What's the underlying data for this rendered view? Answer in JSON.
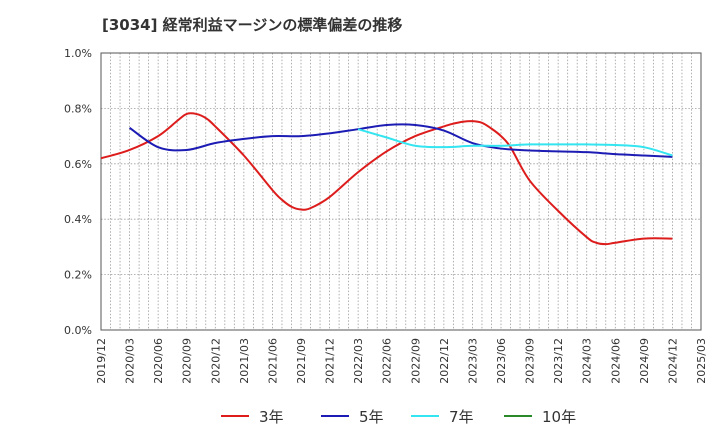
{
  "chart_data": {
    "type": "line",
    "title": "[3034]  経常利益マージンの標準偏差の推移",
    "xlabel": "",
    "ylabel": "",
    "x_ticks": [
      "2019/12",
      "2020/03",
      "2020/06",
      "2020/09",
      "2020/12",
      "2021/03",
      "2021/06",
      "2021/09",
      "2021/12",
      "2022/03",
      "2022/06",
      "2022/09",
      "2022/12",
      "2023/03",
      "2023/06",
      "2023/09",
      "2023/12",
      "2024/03",
      "2024/06",
      "2024/09",
      "2024/12",
      "2025/03"
    ],
    "y_ticks": [
      "0.0%",
      "0.2%",
      "0.4%",
      "0.6%",
      "0.8%",
      "1.0%"
    ],
    "ylim": [
      0,
      1.0
    ],
    "grid": true,
    "legend_position": "bottom",
    "series": [
      {
        "name": "3年",
        "color": "#dd1c1c",
        "x": [
          "2019/12",
          "2020/03",
          "2020/06",
          "2020/08",
          "2020/09",
          "2020/10",
          "2020/11",
          "2020/12",
          "2021/03",
          "2021/06",
          "2021/07",
          "2021/08",
          "2021/09",
          "2021/10",
          "2021/12",
          "2022/03",
          "2022/06",
          "2022/09",
          "2022/12",
          "2023/01",
          "2023/02",
          "2023/03",
          "2023/04",
          "2023/05",
          "2023/06",
          "2023/07",
          "2023/09",
          "2023/12",
          "2024/03",
          "2024/04",
          "2024/05",
          "2024/06",
          "2024/09",
          "2024/12"
        ],
        "values": [
          0.62,
          0.65,
          0.7,
          0.755,
          0.78,
          0.78,
          0.765,
          0.735,
          0.63,
          0.505,
          0.47,
          0.445,
          0.435,
          0.44,
          0.48,
          0.57,
          0.645,
          0.7,
          0.735,
          0.745,
          0.752,
          0.754,
          0.748,
          0.727,
          0.7,
          0.66,
          0.54,
          0.43,
          0.335,
          0.315,
          0.31,
          0.315,
          0.33,
          0.33
        ]
      },
      {
        "name": "5年",
        "color": "#1c1cb4",
        "x": [
          "2020/03",
          "2020/06",
          "2020/09",
          "2020/12",
          "2021/03",
          "2021/06",
          "2021/09",
          "2021/12",
          "2022/03",
          "2022/06",
          "2022/09",
          "2022/12",
          "2023/03",
          "2023/06",
          "2023/09",
          "2023/12",
          "2024/03",
          "2024/06",
          "2024/09",
          "2024/12"
        ],
        "values": [
          0.73,
          0.66,
          0.65,
          0.675,
          0.69,
          0.7,
          0.7,
          0.71,
          0.725,
          0.74,
          0.74,
          0.72,
          0.675,
          0.655,
          0.648,
          0.645,
          0.642,
          0.635,
          0.63,
          0.625
        ]
      },
      {
        "name": "7年",
        "color": "#33e5f0",
        "x": [
          "2022/03",
          "2022/06",
          "2022/09",
          "2022/12",
          "2023/03",
          "2023/06",
          "2023/09",
          "2023/12",
          "2024/03",
          "2024/06",
          "2024/09",
          "2024/12"
        ],
        "values": [
          0.725,
          0.695,
          0.665,
          0.66,
          0.665,
          0.665,
          0.67,
          0.67,
          0.67,
          0.668,
          0.66,
          0.63
        ]
      },
      {
        "name": "10年",
        "color": "#2a8a2a",
        "x": [],
        "values": []
      }
    ]
  }
}
